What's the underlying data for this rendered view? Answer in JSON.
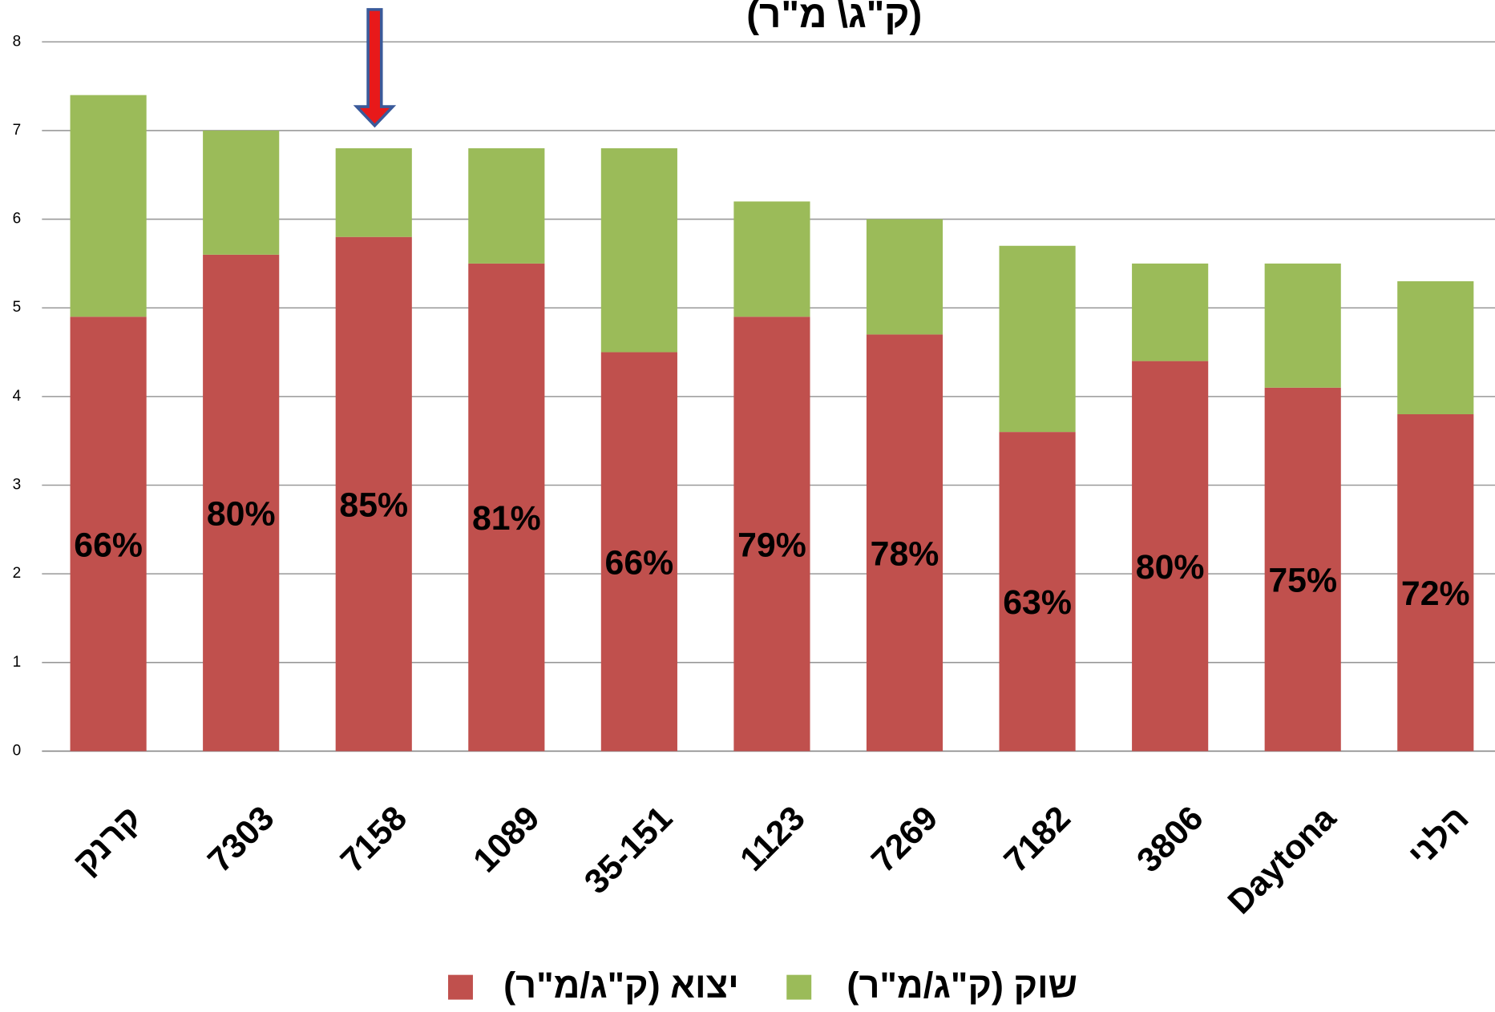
{
  "chart_data": {
    "type": "stacked-bar",
    "title": "(ק\"ג\\ מ\"ר)",
    "categories": [
      "קרנק",
      "7303",
      "7158",
      "1089",
      "35-151",
      "1123",
      "7269",
      "7182",
      "3806",
      "Daytona",
      "הלני"
    ],
    "series": [
      {
        "name": "יצוא (ק\"ג/מ\"ר)",
        "color": "#c0504d",
        "values": [
          4.9,
          5.6,
          5.8,
          5.5,
          4.5,
          4.9,
          4.7,
          3.6,
          4.4,
          4.1,
          3.8
        ]
      },
      {
        "name": "שוק (ק\"ג/מ\"ר)",
        "color": "#9bbb59",
        "values": [
          2.5,
          1.4,
          1.0,
          1.3,
          2.3,
          1.3,
          1.3,
          2.1,
          1.1,
          1.4,
          1.5
        ]
      }
    ],
    "share_values": [
      66,
      80,
      85,
      81,
      66,
      79,
      78,
      63,
      80,
      75,
      72
    ],
    "share_labels": [
      "66%",
      "80%",
      "85%",
      "81%",
      "66%",
      "79%",
      "78%",
      "63%",
      "80%",
      "75%",
      "72%"
    ],
    "ylim": [
      0,
      8
    ],
    "yticks": [
      0,
      1,
      2,
      3,
      4,
      5,
      6,
      7,
      8
    ],
    "grid": true,
    "legend": "bottom"
  }
}
